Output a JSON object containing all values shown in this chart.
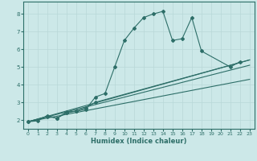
{
  "xlabel": "Humidex (Indice chaleur)",
  "xlim": [
    -0.5,
    23.5
  ],
  "ylim": [
    1.5,
    8.7
  ],
  "bg_color": "#cce8e8",
  "line_color": "#2d6e68",
  "grid_color": "#b8d8d8",
  "lines": [
    {
      "x": [
        0,
        1,
        2,
        3,
        4,
        5,
        6,
        7,
        8,
        9,
        10,
        11,
        12,
        13,
        14,
        15,
        16,
        17,
        18,
        21,
        22
      ],
      "y": [
        1.9,
        1.95,
        2.25,
        2.1,
        2.4,
        2.5,
        2.6,
        3.3,
        3.5,
        5.0,
        6.5,
        7.2,
        7.8,
        8.0,
        8.15,
        6.5,
        6.6,
        7.8,
        5.9,
        5.0,
        5.3
      ],
      "has_markers": true
    },
    {
      "x": [
        0,
        2,
        3,
        4,
        5,
        6,
        7
      ],
      "y": [
        1.9,
        2.2,
        2.1,
        2.45,
        2.5,
        2.7,
        3.0
      ],
      "has_markers": true
    },
    {
      "x": [
        7,
        23
      ],
      "y": [
        3.0,
        5.4
      ],
      "has_markers": false
    },
    {
      "x": [
        0,
        23
      ],
      "y": [
        1.9,
        5.4
      ],
      "has_markers": false
    },
    {
      "x": [
        0,
        23
      ],
      "y": [
        1.9,
        4.3
      ],
      "has_markers": false
    },
    {
      "x": [
        0,
        23
      ],
      "y": [
        1.9,
        5.1
      ],
      "has_markers": false
    }
  ]
}
